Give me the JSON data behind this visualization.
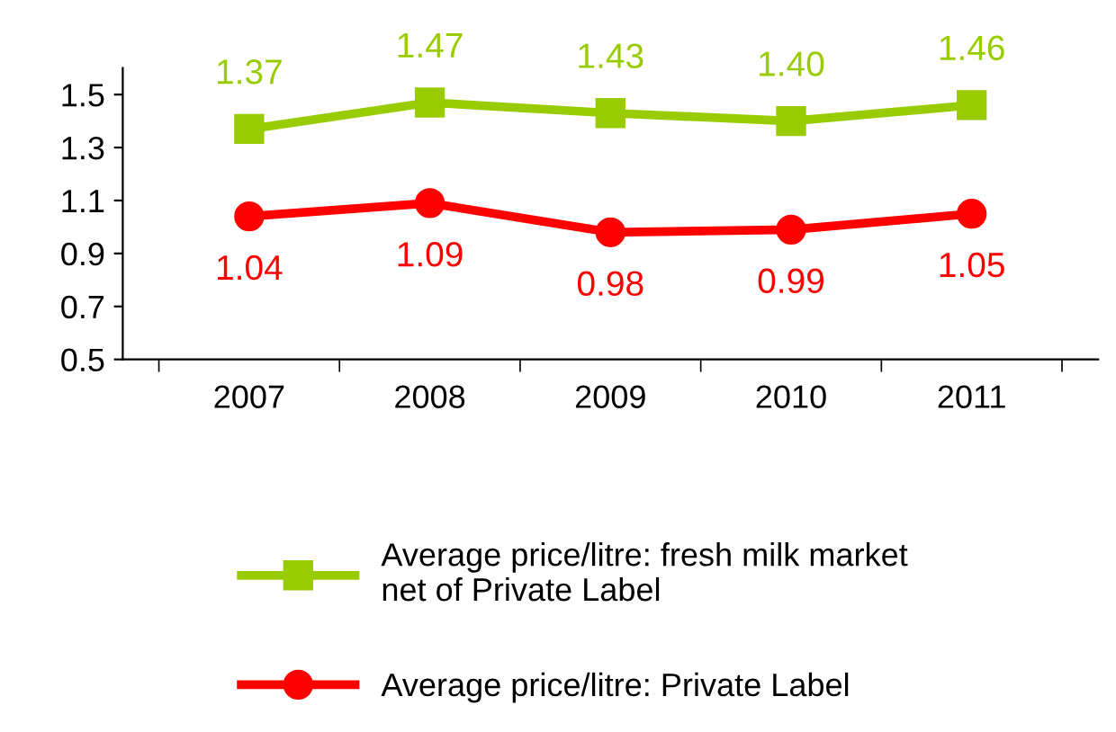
{
  "chart_data": {
    "type": "line",
    "categories": [
      "2007",
      "2008",
      "2009",
      "2010",
      "2011"
    ],
    "series": [
      {
        "name": "Average price/litre: fresh milk market\nnet of Private Label",
        "color": "#99cc00",
        "values": [
          1.37,
          1.47,
          1.43,
          1.4,
          1.46
        ],
        "value_labels": [
          "1.37",
          "1.47",
          "1.43",
          "1.40",
          "1.46"
        ],
        "marker": "square"
      },
      {
        "name": "Average price/litre: Private Label",
        "color": "#ff0000",
        "values": [
          1.04,
          1.09,
          0.98,
          0.99,
          1.05
        ],
        "value_labels": [
          "1.04",
          "1.09",
          "0.98",
          "0.99",
          "1.05"
        ],
        "marker": "circle"
      }
    ],
    "ylim": [
      0.5,
      1.6
    ],
    "yticks": [
      0.5,
      0.7,
      0.9,
      1.1,
      1.3,
      1.5
    ],
    "grid": false,
    "legend": "bottom",
    "line_style": "solid"
  }
}
